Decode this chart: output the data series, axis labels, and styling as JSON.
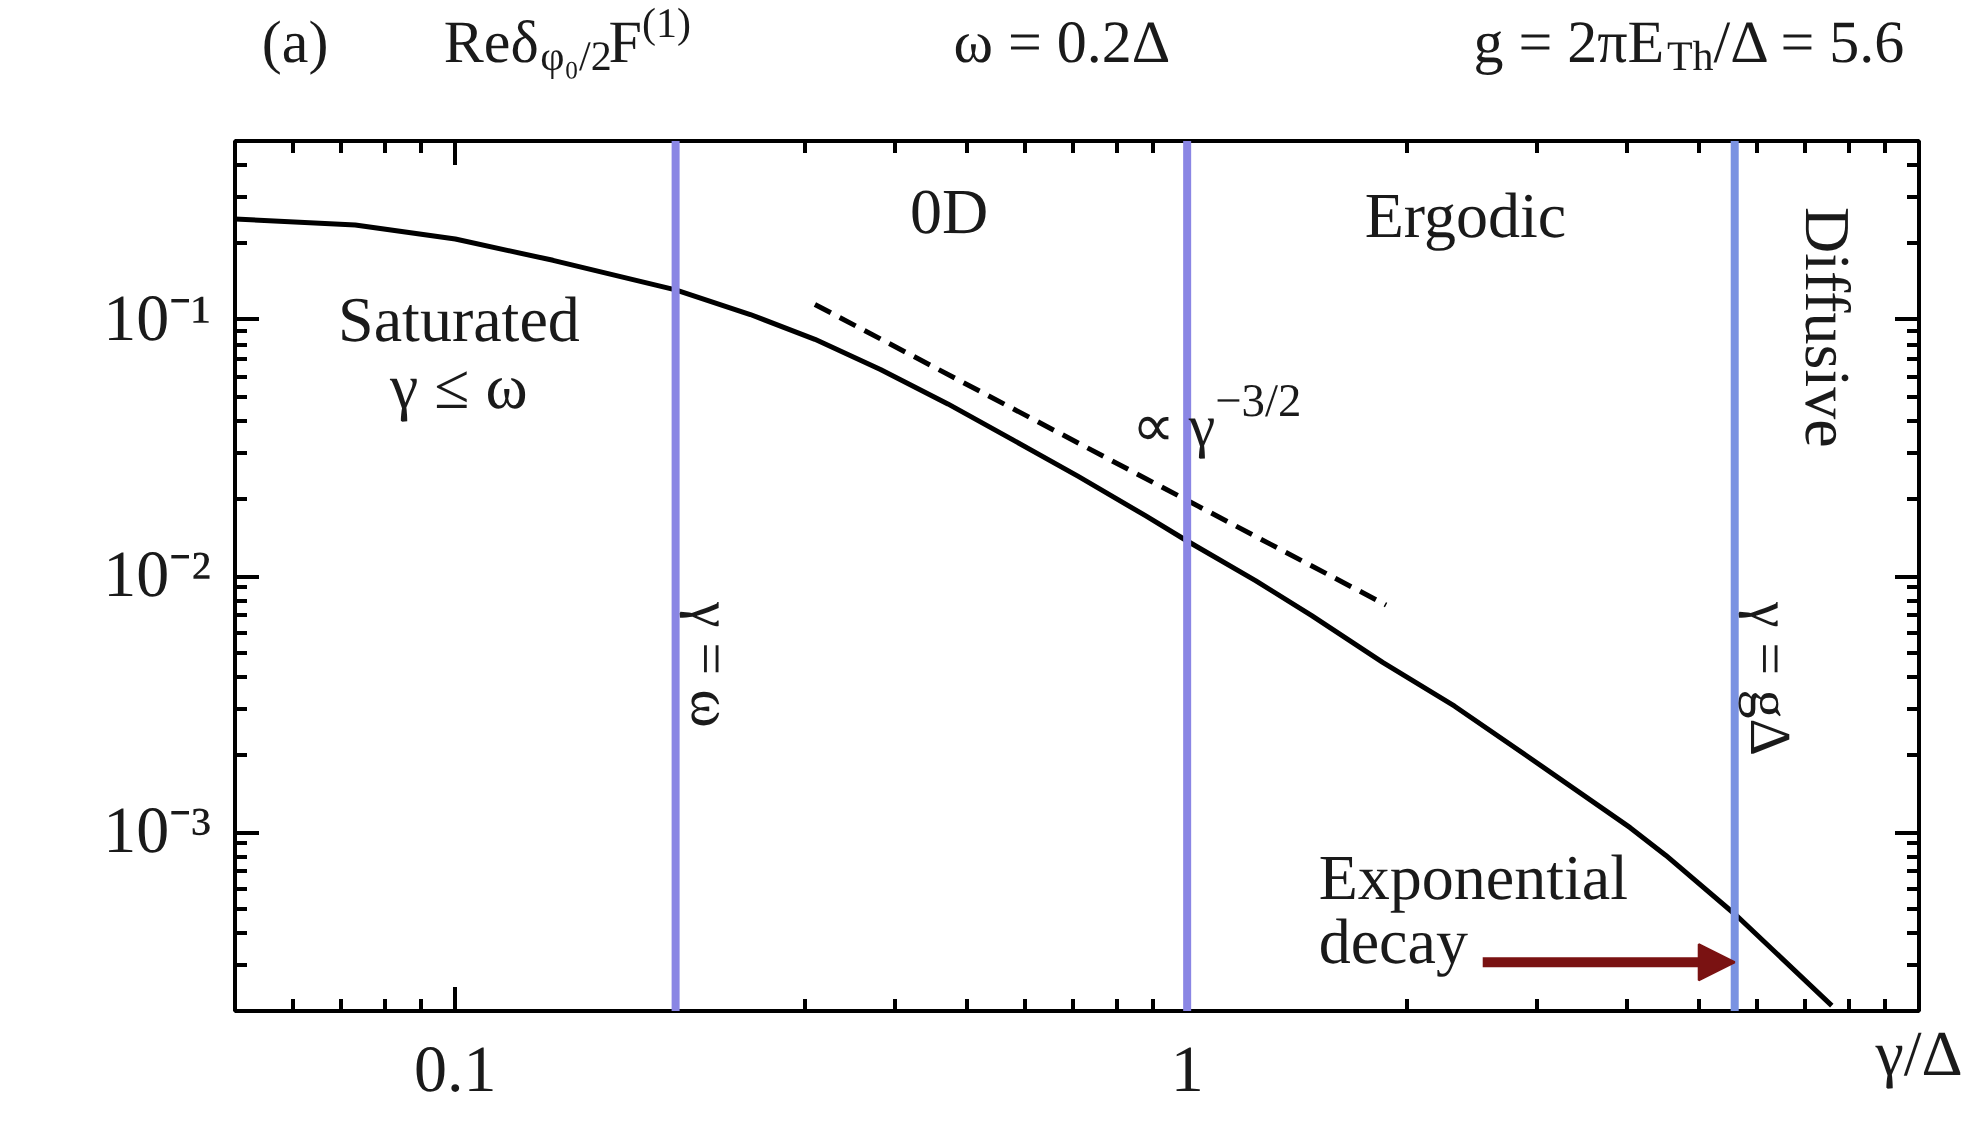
{
  "chart_data": {
    "type": "line",
    "title": "(a)",
    "xlabel": "γ/Δ",
    "ylabel": "Reδ$_{φ₀/2}$F$^{(1)}$",
    "log": "xy",
    "grid": false,
    "xlim": [
      0.05,
      10
    ],
    "ylim": [
      0.0002,
      0.5
    ],
    "xticks": [
      {
        "value": 0.06,
        "label": null
      },
      {
        "value": 0.07,
        "label": null
      },
      {
        "value": 0.08,
        "label": null
      },
      {
        "value": 0.09,
        "label": null
      },
      0.1,
      {
        "value": 0.2,
        "label": null
      },
      {
        "value": 0.3,
        "label": null
      },
      {
        "value": 0.4,
        "label": null
      },
      {
        "value": 0.5,
        "label": null
      },
      {
        "value": 0.6,
        "label": null
      },
      {
        "value": 0.7,
        "label": null
      },
      {
        "value": 0.8,
        "label": null
      },
      {
        "value": 0.9,
        "label": null
      },
      1,
      {
        "value": 2,
        "label": null
      },
      {
        "value": 3,
        "label": null
      },
      {
        "value": 4,
        "label": null
      },
      {
        "value": 5,
        "label": null
      },
      {
        "value": 6,
        "label": null
      },
      {
        "value": 7,
        "label": null
      },
      {
        "value": 8,
        "label": null
      },
      {
        "value": 9,
        "label": null
      }
    ],
    "yticks": [
      {
        "value": 0.0003,
        "label": null
      },
      {
        "value": 0.0004,
        "label": null
      },
      {
        "value": 0.0005,
        "label": null
      },
      {
        "value": 0.0006,
        "label": null
      },
      {
        "value": 0.0007,
        "label": null
      },
      {
        "value": 0.0008,
        "label": null
      },
      {
        "value": 0.0009,
        "label": null
      },
      {
        "value": 0.001,
        "label": "10⁻³"
      },
      {
        "value": 0.002,
        "label": null
      },
      {
        "value": 0.003,
        "label": null
      },
      {
        "value": 0.004,
        "label": null
      },
      {
        "value": 0.005,
        "label": null
      },
      {
        "value": 0.006,
        "label": null
      },
      {
        "value": 0.007,
        "label": null
      },
      {
        "value": 0.008,
        "label": null
      },
      {
        "value": 0.009,
        "label": null
      },
      {
        "value": 0.01,
        "label": "10⁻²"
      },
      {
        "value": 0.02,
        "label": null
      },
      {
        "value": 0.03,
        "label": null
      },
      {
        "value": 0.04,
        "label": null
      },
      {
        "value": 0.05,
        "label": null
      },
      {
        "value": 0.06,
        "label": null
      },
      {
        "value": 0.07,
        "label": null
      },
      {
        "value": 0.08,
        "label": null
      },
      {
        "value": 0.09,
        "label": null
      },
      {
        "value": 0.1,
        "label": "10⁻¹"
      },
      {
        "value": 0.2,
        "label": null
      },
      {
        "value": 0.3,
        "label": null
      },
      {
        "value": 0.4,
        "label": null
      }
    ],
    "series": [
      {
        "color": "#000000",
        "line_style": "solid",
        "x": [
          0.05,
          0.073,
          0.1,
          0.136,
          0.2,
          0.253,
          0.31,
          0.381,
          0.471,
          0.578,
          0.71,
          0.877,
          1,
          1.24,
          1.48,
          1.85,
          2.32,
          2.9,
          4.03,
          4.51,
          5.64,
          7.6
        ],
        "values": [
          0.248,
          0.235,
          0.207,
          0.171,
          0.131,
          0.105,
          0.084,
          0.064,
          0.047,
          0.034,
          0.0245,
          0.0172,
          0.0137,
          0.0096,
          0.007,
          0.0046,
          0.0031,
          0.002,
          0.00104,
          0.00081,
          0.00047,
          0.00021
        ]
      },
      {
        "color": "#000000",
        "line_style": "dashed",
        "x": [
          0.31,
          1.87
        ],
        "values": [
          0.115,
          0.0077
        ]
      }
    ],
    "ref_lines": [
      {
        "axis": "x",
        "value": 0.2,
        "label": "γ = ω",
        "color": "#8a86e4"
      },
      {
        "axis": "x",
        "value": 1,
        "color": "#8a86e4"
      },
      {
        "axis": "x",
        "value": 5.6,
        "label": "γ = gΔ",
        "color": "#7a92e2"
      }
    ],
    "annotations": [
      "ω = 0.2Δ",
      "g = 2πE$_{Th}$/Δ = 5.6",
      "Saturated\nγ ≤ ω",
      "0D",
      "Ergodic",
      "Diffusive",
      {
        "text": "∝ γ$^{−3/2}$",
        "x": 0.84,
        "y": 0.0257
      },
      {
        "text": "Exponential\ndecay",
        "x": 5.6,
        "y": 0.00031
      }
    ]
  }
}
